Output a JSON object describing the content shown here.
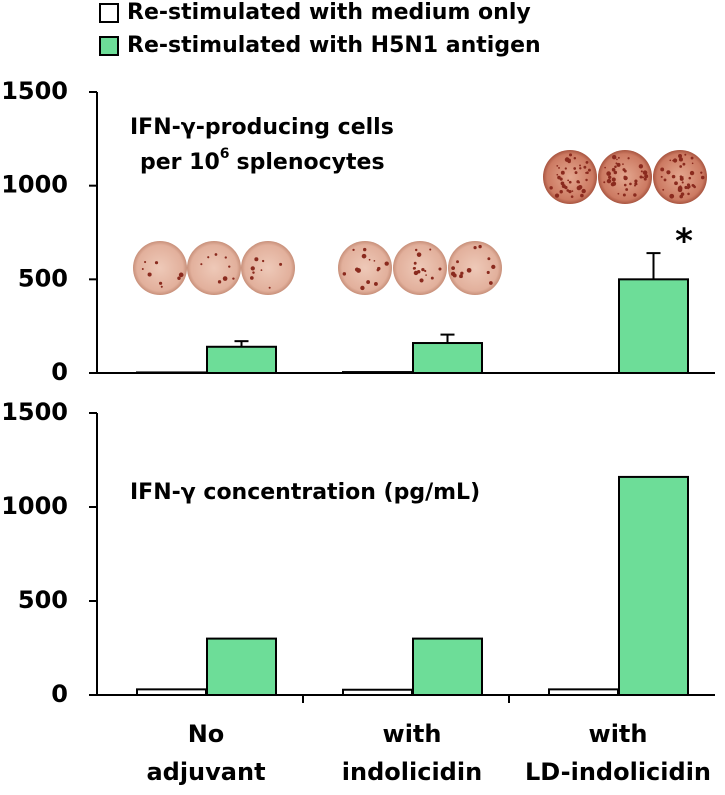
{
  "chart_data": [
    {
      "type": "bar",
      "title_lines": [
        "IFN-γ-producing cells",
        "per 10",
        "6",
        "splenocytes"
      ],
      "annotation": "*",
      "series": [
        {
          "name": "Re-stimulated with medium only",
          "color": "#ffffff",
          "values": [
            3,
            5,
            0
          ]
        },
        {
          "name": "Re-stimulated with H5N1 antigen",
          "color": "#6ddd98",
          "values": [
            140,
            160,
            500
          ],
          "errors": [
            30,
            45,
            140
          ]
        }
      ],
      "ylim": [
        0,
        1500
      ],
      "yticks": [
        0,
        500,
        1000,
        1500
      ]
    },
    {
      "type": "bar",
      "title": "IFN-γ concentration (pg/mL)",
      "categories": [
        [
          "No",
          "adjuvant"
        ],
        [
          "with",
          "indolicidin"
        ],
        [
          "with",
          "LD-indolicidin"
        ]
      ],
      "series": [
        {
          "color": "#ffffff",
          "values": [
            30,
            28,
            30
          ]
        },
        {
          "color": "#6ddd98",
          "values": [
            300,
            300,
            1160
          ]
        }
      ],
      "ylim": [
        0,
        1500
      ],
      "yticks": [
        0,
        500,
        1000,
        1500
      ]
    }
  ]
}
